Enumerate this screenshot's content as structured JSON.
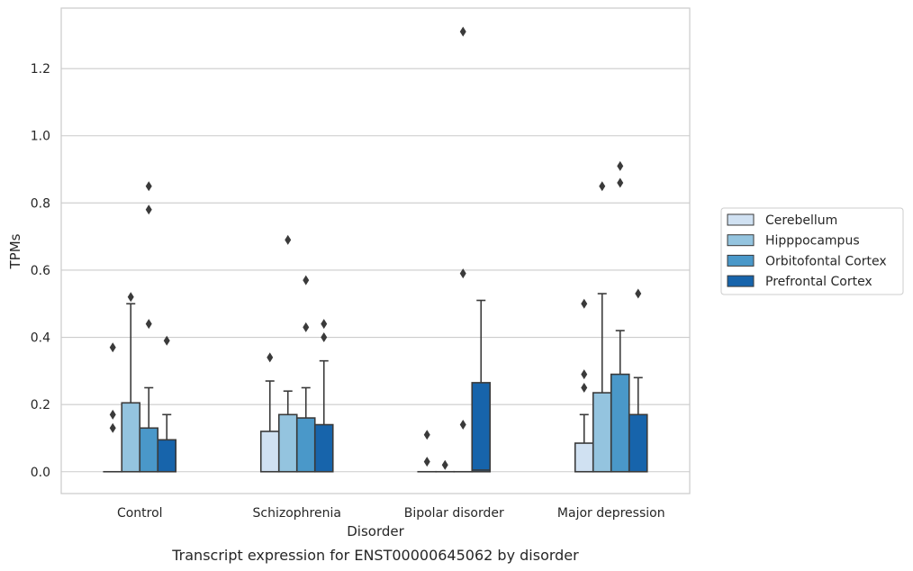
{
  "chart_data": {
    "type": "box",
    "caption": "Transcript expression for ENST00000645062 by disorder",
    "xlabel": "Disorder",
    "ylabel": "TPMs",
    "categories": [
      "Control",
      "Schizophrenia",
      "Bipolar disorder",
      "Major depression"
    ],
    "yticks": [
      "0.0",
      "0.2",
      "0.4",
      "0.6",
      "0.8",
      "1.0",
      "1.2"
    ],
    "ylim": [
      -0.065,
      1.38
    ],
    "grid": "horizontal",
    "legend_position": "right",
    "series": [
      {
        "name": "Cerebellum",
        "color": "#d0e1f2",
        "boxes": [
          {
            "q1": 0.0,
            "median": 0.0,
            "q3": 0.0,
            "whisker_low": 0.0,
            "whisker_high": 0.0,
            "outliers": [
              0.37,
              0.17,
              0.13
            ]
          },
          {
            "q1": 0.0,
            "median": 0.0,
            "q3": 0.12,
            "whisker_low": 0.0,
            "whisker_high": 0.27,
            "outliers": [
              0.34
            ]
          },
          {
            "q1": 0.0,
            "median": 0.0,
            "q3": 0.0,
            "whisker_low": 0.0,
            "whisker_high": 0.0,
            "outliers": [
              0.11,
              0.03
            ]
          },
          {
            "q1": 0.0,
            "median": 0.0,
            "q3": 0.085,
            "whisker_low": 0.0,
            "whisker_high": 0.17,
            "outliers": [
              0.5,
              0.29,
              0.25
            ]
          }
        ]
      },
      {
        "name": "Hipppocampus",
        "color": "#94c4df",
        "boxes": [
          {
            "q1": 0.0,
            "median": 0.0,
            "q3": 0.205,
            "whisker_low": 0.0,
            "whisker_high": 0.5,
            "outliers": [
              0.52
            ]
          },
          {
            "q1": 0.0,
            "median": 0.0,
            "q3": 0.17,
            "whisker_low": 0.0,
            "whisker_high": 0.24,
            "outliers": [
              0.69
            ]
          },
          {
            "q1": 0.0,
            "median": 0.0,
            "q3": 0.0,
            "whisker_low": 0.0,
            "whisker_high": 0.0,
            "outliers": [
              0.02
            ]
          },
          {
            "q1": 0.0,
            "median": 0.0,
            "q3": 0.235,
            "whisker_low": 0.0,
            "whisker_high": 0.53,
            "outliers": [
              0.85
            ]
          }
        ]
      },
      {
        "name": "Orbitofontal Cortex",
        "color": "#4a98c9",
        "boxes": [
          {
            "q1": 0.0,
            "median": 0.0,
            "q3": 0.13,
            "whisker_low": 0.0,
            "whisker_high": 0.25,
            "outliers": [
              0.85,
              0.78,
              0.44
            ]
          },
          {
            "q1": 0.0,
            "median": 0.0,
            "q3": 0.16,
            "whisker_low": 0.0,
            "whisker_high": 0.25,
            "outliers": [
              0.57,
              0.43
            ]
          },
          {
            "q1": 0.0,
            "median": 0.0,
            "q3": 0.0,
            "whisker_low": 0.0,
            "whisker_high": 0.0,
            "outliers": [
              1.31,
              0.59,
              0.14
            ]
          },
          {
            "q1": 0.0,
            "median": 0.0,
            "q3": 0.29,
            "whisker_low": 0.0,
            "whisker_high": 0.42,
            "outliers": [
              0.91,
              0.86
            ]
          }
        ]
      },
      {
        "name": "Prefrontal Cortex",
        "color": "#1764ab",
        "boxes": [
          {
            "q1": 0.0,
            "median": 0.0,
            "q3": 0.095,
            "whisker_low": 0.0,
            "whisker_high": 0.17,
            "outliers": [
              0.39
            ]
          },
          {
            "q1": 0.0,
            "median": 0.0,
            "q3": 0.14,
            "whisker_low": 0.0,
            "whisker_high": 0.33,
            "outliers": [
              0.44,
              0.4
            ]
          },
          {
            "q1": 0.0,
            "median": 0.005,
            "q3": 0.265,
            "whisker_low": 0.0,
            "whisker_high": 0.51,
            "outliers": []
          },
          {
            "q1": 0.0,
            "median": 0.0,
            "q3": 0.17,
            "whisker_low": 0.0,
            "whisker_high": 0.28,
            "outliers": [
              0.53
            ]
          }
        ]
      }
    ]
  }
}
